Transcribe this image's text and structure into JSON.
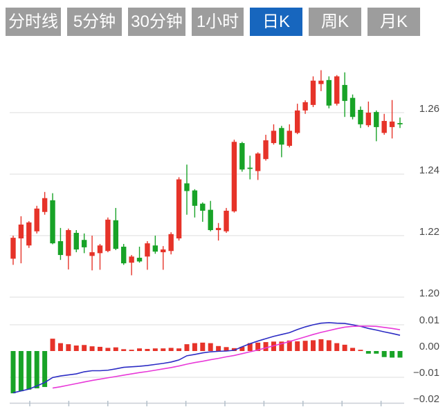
{
  "tabs": [
    {
      "label": "分时线",
      "active": false
    },
    {
      "label": "5分钟",
      "active": false
    },
    {
      "label": "30分钟",
      "active": false
    },
    {
      "label": "1小时",
      "active": false
    },
    {
      "label": "日K",
      "active": true
    },
    {
      "label": "周K",
      "active": false
    },
    {
      "label": "月K",
      "active": false
    }
  ],
  "colors": {
    "tab_active_blue": "#1766be",
    "tab_gray": "#9d9d9d",
    "tab_text": "#ffffff",
    "grid": "#e8e8e8",
    "axis_text": "#4a4a4a",
    "axis_line": "#c9ced6",
    "axis_tick": "#b3bfca",
    "background": "#ffffff"
  },
  "chart_data": {
    "type": "candlestick",
    "indicator": "MACD",
    "candle_convention": "red = rise (close >= open), green = fall (close < open)",
    "up_color": "#e63329",
    "down_color": "#18a327",
    "price_axis": {
      "ticks": [
        {
          "label": "1.26",
          "value": 1.26
        },
        {
          "label": "1.24",
          "value": 1.24
        },
        {
          "label": "1.22",
          "value": 1.22
        },
        {
          "label": "1.20",
          "value": 1.2
        }
      ]
    },
    "macd_axis": {
      "ticks": [
        {
          "label": "0.01",
          "value": 0.01,
          "grid": true
        },
        {
          "label": "0.00",
          "value": 0.0,
          "grid": false
        },
        {
          "label": "−0.01",
          "value": -0.01,
          "grid": true
        },
        {
          "label": "−0.02",
          "value": -0.02,
          "grid": false
        }
      ]
    },
    "candles": [
      [
        1.2125,
        1.22,
        1.2105,
        1.2193
      ],
      [
        1.2191,
        1.2263,
        1.211,
        1.2236
      ],
      [
        1.2168,
        1.2247,
        1.216,
        1.2243
      ],
      [
        1.2214,
        1.2297,
        1.2207,
        1.2288
      ],
      [
        1.2277,
        1.2342,
        1.2268,
        1.2322
      ],
      [
        1.2315,
        1.2338,
        1.2172,
        1.2175
      ],
      [
        1.2182,
        1.2225,
        1.2121,
        1.2137
      ],
      [
        1.2134,
        1.2223,
        1.209,
        1.2218
      ],
      [
        1.2209,
        1.2218,
        1.2146,
        1.2155
      ],
      [
        1.2186,
        1.2207,
        1.2143,
        1.2162
      ],
      [
        1.2134,
        1.22,
        1.2087,
        1.2146
      ],
      [
        1.2143,
        1.2173,
        1.2089,
        1.2168
      ],
      [
        1.215,
        1.2259,
        1.2146,
        1.2252
      ],
      [
        1.225,
        1.229,
        1.2153,
        1.2157
      ],
      [
        1.2164,
        1.2173,
        1.2105,
        1.211
      ],
      [
        1.2112,
        1.2137,
        1.2071,
        1.2132
      ],
      [
        1.2128,
        1.2164,
        1.2112,
        1.2116
      ],
      [
        1.2132,
        1.2182,
        1.2089,
        1.2175
      ],
      [
        1.2168,
        1.22,
        1.2141,
        1.2148
      ],
      [
        1.2146,
        1.2166,
        1.2089,
        1.2155
      ],
      [
        1.215,
        1.2211,
        1.2139,
        1.2205
      ],
      [
        1.2191,
        1.239,
        1.2184,
        1.2383
      ],
      [
        1.237,
        1.2431,
        1.2268,
        1.2345
      ],
      [
        1.2347,
        1.2351,
        1.2259,
        1.2297
      ],
      [
        1.2304,
        1.2308,
        1.2245,
        1.2281
      ],
      [
        1.2284,
        1.2313,
        1.2214,
        1.2218
      ],
      [
        1.2218,
        1.2241,
        1.2184,
        1.2225
      ],
      [
        1.2214,
        1.229,
        1.2209,
        1.2281
      ],
      [
        1.2279,
        1.2512,
        1.2275,
        1.2505
      ],
      [
        1.2501,
        1.2505,
        1.2408,
        1.2415
      ],
      [
        1.2421,
        1.246,
        1.2383,
        1.2417
      ],
      [
        1.241,
        1.2471,
        1.2381,
        1.2467
      ],
      [
        1.2449,
        1.2528,
        1.2444,
        1.251
      ],
      [
        1.2501,
        1.2562,
        1.2496,
        1.2541
      ],
      [
        1.255,
        1.2557,
        1.2455,
        1.2496
      ],
      [
        1.2492,
        1.2562,
        1.2487,
        1.2541
      ],
      [
        1.2534,
        1.2629,
        1.253,
        1.2607
      ],
      [
        1.2607,
        1.264,
        1.2596,
        1.2634
      ],
      [
        1.2625,
        1.2718,
        1.2618,
        1.2704
      ],
      [
        1.2693,
        1.2738,
        1.267,
        1.2704
      ],
      [
        1.2706,
        1.2718,
        1.2614,
        1.2623
      ],
      [
        1.2629,
        1.2722,
        1.2623,
        1.2718
      ],
      [
        1.269,
        1.2731,
        1.2586,
        1.2638
      ],
      [
        1.2648,
        1.2659,
        1.2578,
        1.2586
      ],
      [
        1.2609,
        1.262,
        1.255,
        1.2562
      ],
      [
        1.2559,
        1.2636,
        1.2553,
        1.26
      ],
      [
        1.2602,
        1.2607,
        1.2507,
        1.2553
      ],
      [
        1.2534,
        1.2596,
        1.2528,
        1.2573
      ],
      [
        1.2553,
        1.2641,
        1.2516,
        1.2571
      ],
      [
        1.2566,
        1.2584,
        1.255,
        1.2562
      ]
    ],
    "macd": {
      "dif_color": "#2b2bc4",
      "dea_color": "#e838d8",
      "hist": [
        -0.0161,
        -0.0153,
        -0.0147,
        -0.0142,
        -0.0137,
        0.0047,
        0.003,
        0.0026,
        0.0021,
        0.0023,
        0.0018,
        0.0016,
        0.0012,
        0.0014,
        0.0007,
        0.0005,
        0.001,
        0.0008,
        0.001,
        0.001,
        0.0012,
        0.001,
        0.0026,
        0.003,
        0.0032,
        0.003,
        0.0019,
        0.0015,
        0.0011,
        0.0016,
        0.003,
        0.0032,
        0.0034,
        0.0036,
        0.0036,
        0.004,
        0.0037,
        0.0039,
        0.0041,
        0.0045,
        0.0041,
        0.003,
        0.0024,
        0.0012,
        0.0004,
        -0.001,
        -0.001,
        -0.0023,
        -0.0025,
        -0.0025
      ],
      "dif": [
        -0.0159,
        -0.0152,
        -0.0145,
        -0.0133,
        -0.012,
        -0.0101,
        -0.0095,
        -0.0091,
        -0.0087,
        -0.0079,
        -0.0075,
        -0.0075,
        -0.0073,
        -0.0068,
        -0.0062,
        -0.006,
        -0.0058,
        -0.0055,
        -0.0051,
        -0.0047,
        -0.0042,
        -0.0034,
        -0.0018,
        -0.0013,
        -0.0007,
        -0.0003,
        -0.0001,
        0.0,
        0.0003,
        0.0016,
        0.0028,
        0.0038,
        0.0047,
        0.0056,
        0.0063,
        0.007,
        0.0082,
        0.0092,
        0.01,
        0.0106,
        0.0108,
        0.0106,
        0.0105,
        0.01,
        0.0094,
        0.0086,
        0.008,
        0.0073,
        0.0067,
        0.006
      ],
      "dea": [
        null,
        null,
        null,
        null,
        null,
        -0.0141,
        -0.0136,
        -0.013,
        -0.0124,
        -0.0118,
        -0.0112,
        -0.0107,
        -0.0102,
        -0.0097,
        -0.0092,
        -0.0087,
        -0.0082,
        -0.0078,
        -0.0073,
        -0.0068,
        -0.0063,
        -0.0057,
        -0.005,
        -0.0044,
        -0.0039,
        -0.0033,
        -0.0028,
        -0.0022,
        -0.0017,
        -0.001,
        -0.0003,
        0.0004,
        0.0012,
        0.002,
        0.0028,
        0.0036,
        0.0045,
        0.0054,
        0.0063,
        0.0071,
        0.0078,
        0.0085,
        0.0091,
        0.0094,
        0.0095,
        0.0095,
        0.0094,
        0.009,
        0.0086,
        0.0081
      ]
    }
  }
}
